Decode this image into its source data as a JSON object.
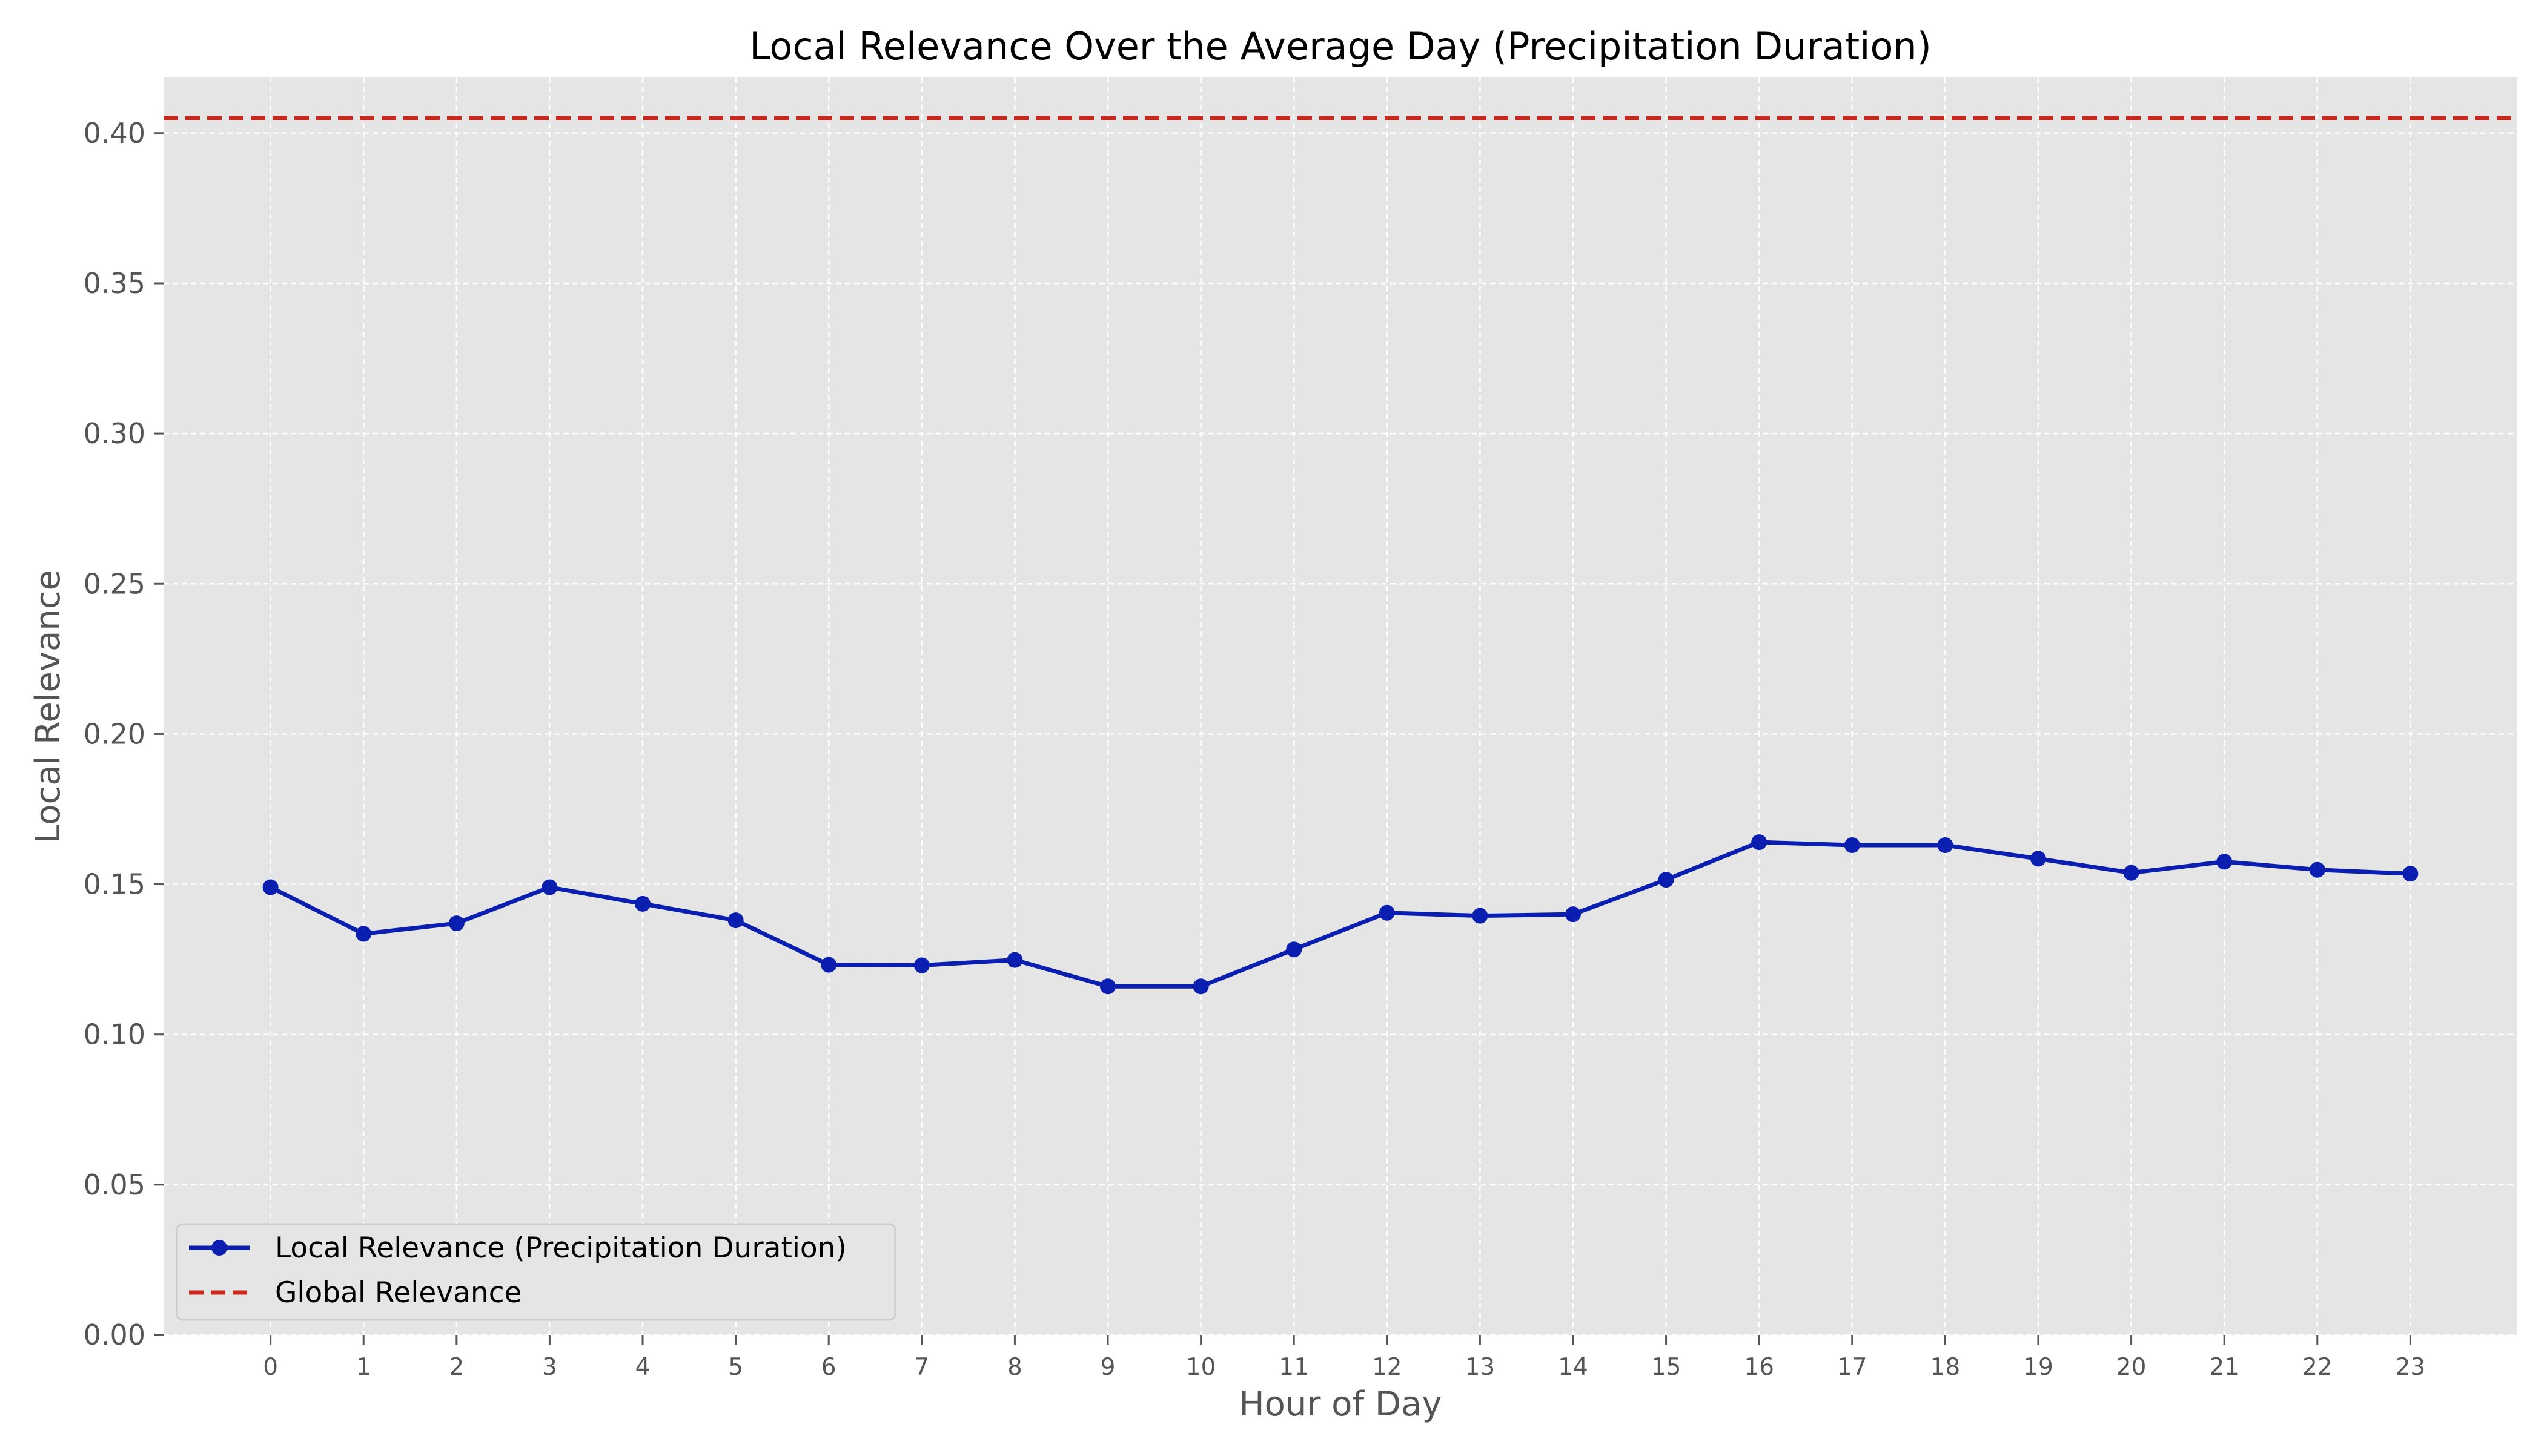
{
  "chart_data": {
    "type": "line",
    "title": "Local Relevance Over the Average Day (Precipitation Duration)",
    "xlabel": "Hour of Day",
    "ylabel": "Local Relevance",
    "x": [
      0,
      1,
      2,
      3,
      4,
      5,
      6,
      7,
      8,
      9,
      10,
      11,
      12,
      13,
      14,
      15,
      16,
      17,
      18,
      19,
      20,
      21,
      22,
      23
    ],
    "xlim": [
      -1.15,
      24.15
    ],
    "ylim": [
      0.0,
      0.4185
    ],
    "yticks": [
      0.0,
      0.05,
      0.1,
      0.15,
      0.2,
      0.25,
      0.3,
      0.35,
      0.4
    ],
    "ytick_labels": [
      "0.00",
      "0.05",
      "0.10",
      "0.15",
      "0.20",
      "0.25",
      "0.30",
      "0.35",
      "0.40"
    ],
    "xtick_labels": [
      "0",
      "1",
      "2",
      "3",
      "4",
      "5",
      "6",
      "7",
      "8",
      "9",
      "10",
      "11",
      "12",
      "13",
      "14",
      "15",
      "16",
      "17",
      "18",
      "19",
      "20",
      "21",
      "22",
      "23"
    ],
    "grid": true,
    "legend_position": "lower-left",
    "series": [
      {
        "name": "Local Relevance (Precipitation Duration)",
        "style": "solid line with circle markers",
        "color": "#0a1fb0",
        "values": [
          0.149,
          0.1335,
          0.137,
          0.149,
          0.1435,
          0.138,
          0.1232,
          0.123,
          0.1248,
          0.116,
          0.116,
          0.1283,
          0.1405,
          0.1395,
          0.14,
          0.1515,
          0.164,
          0.163,
          0.163,
          0.1585,
          0.1538,
          0.1575,
          0.1548,
          0.1535
        ]
      },
      {
        "name": "Global Relevance",
        "style": "dashed horizontal line",
        "color": "#c8281e",
        "value": 0.405
      }
    ],
    "colors": {
      "plot_background": "#e5e5e5",
      "grid": "#ffffff"
    }
  }
}
